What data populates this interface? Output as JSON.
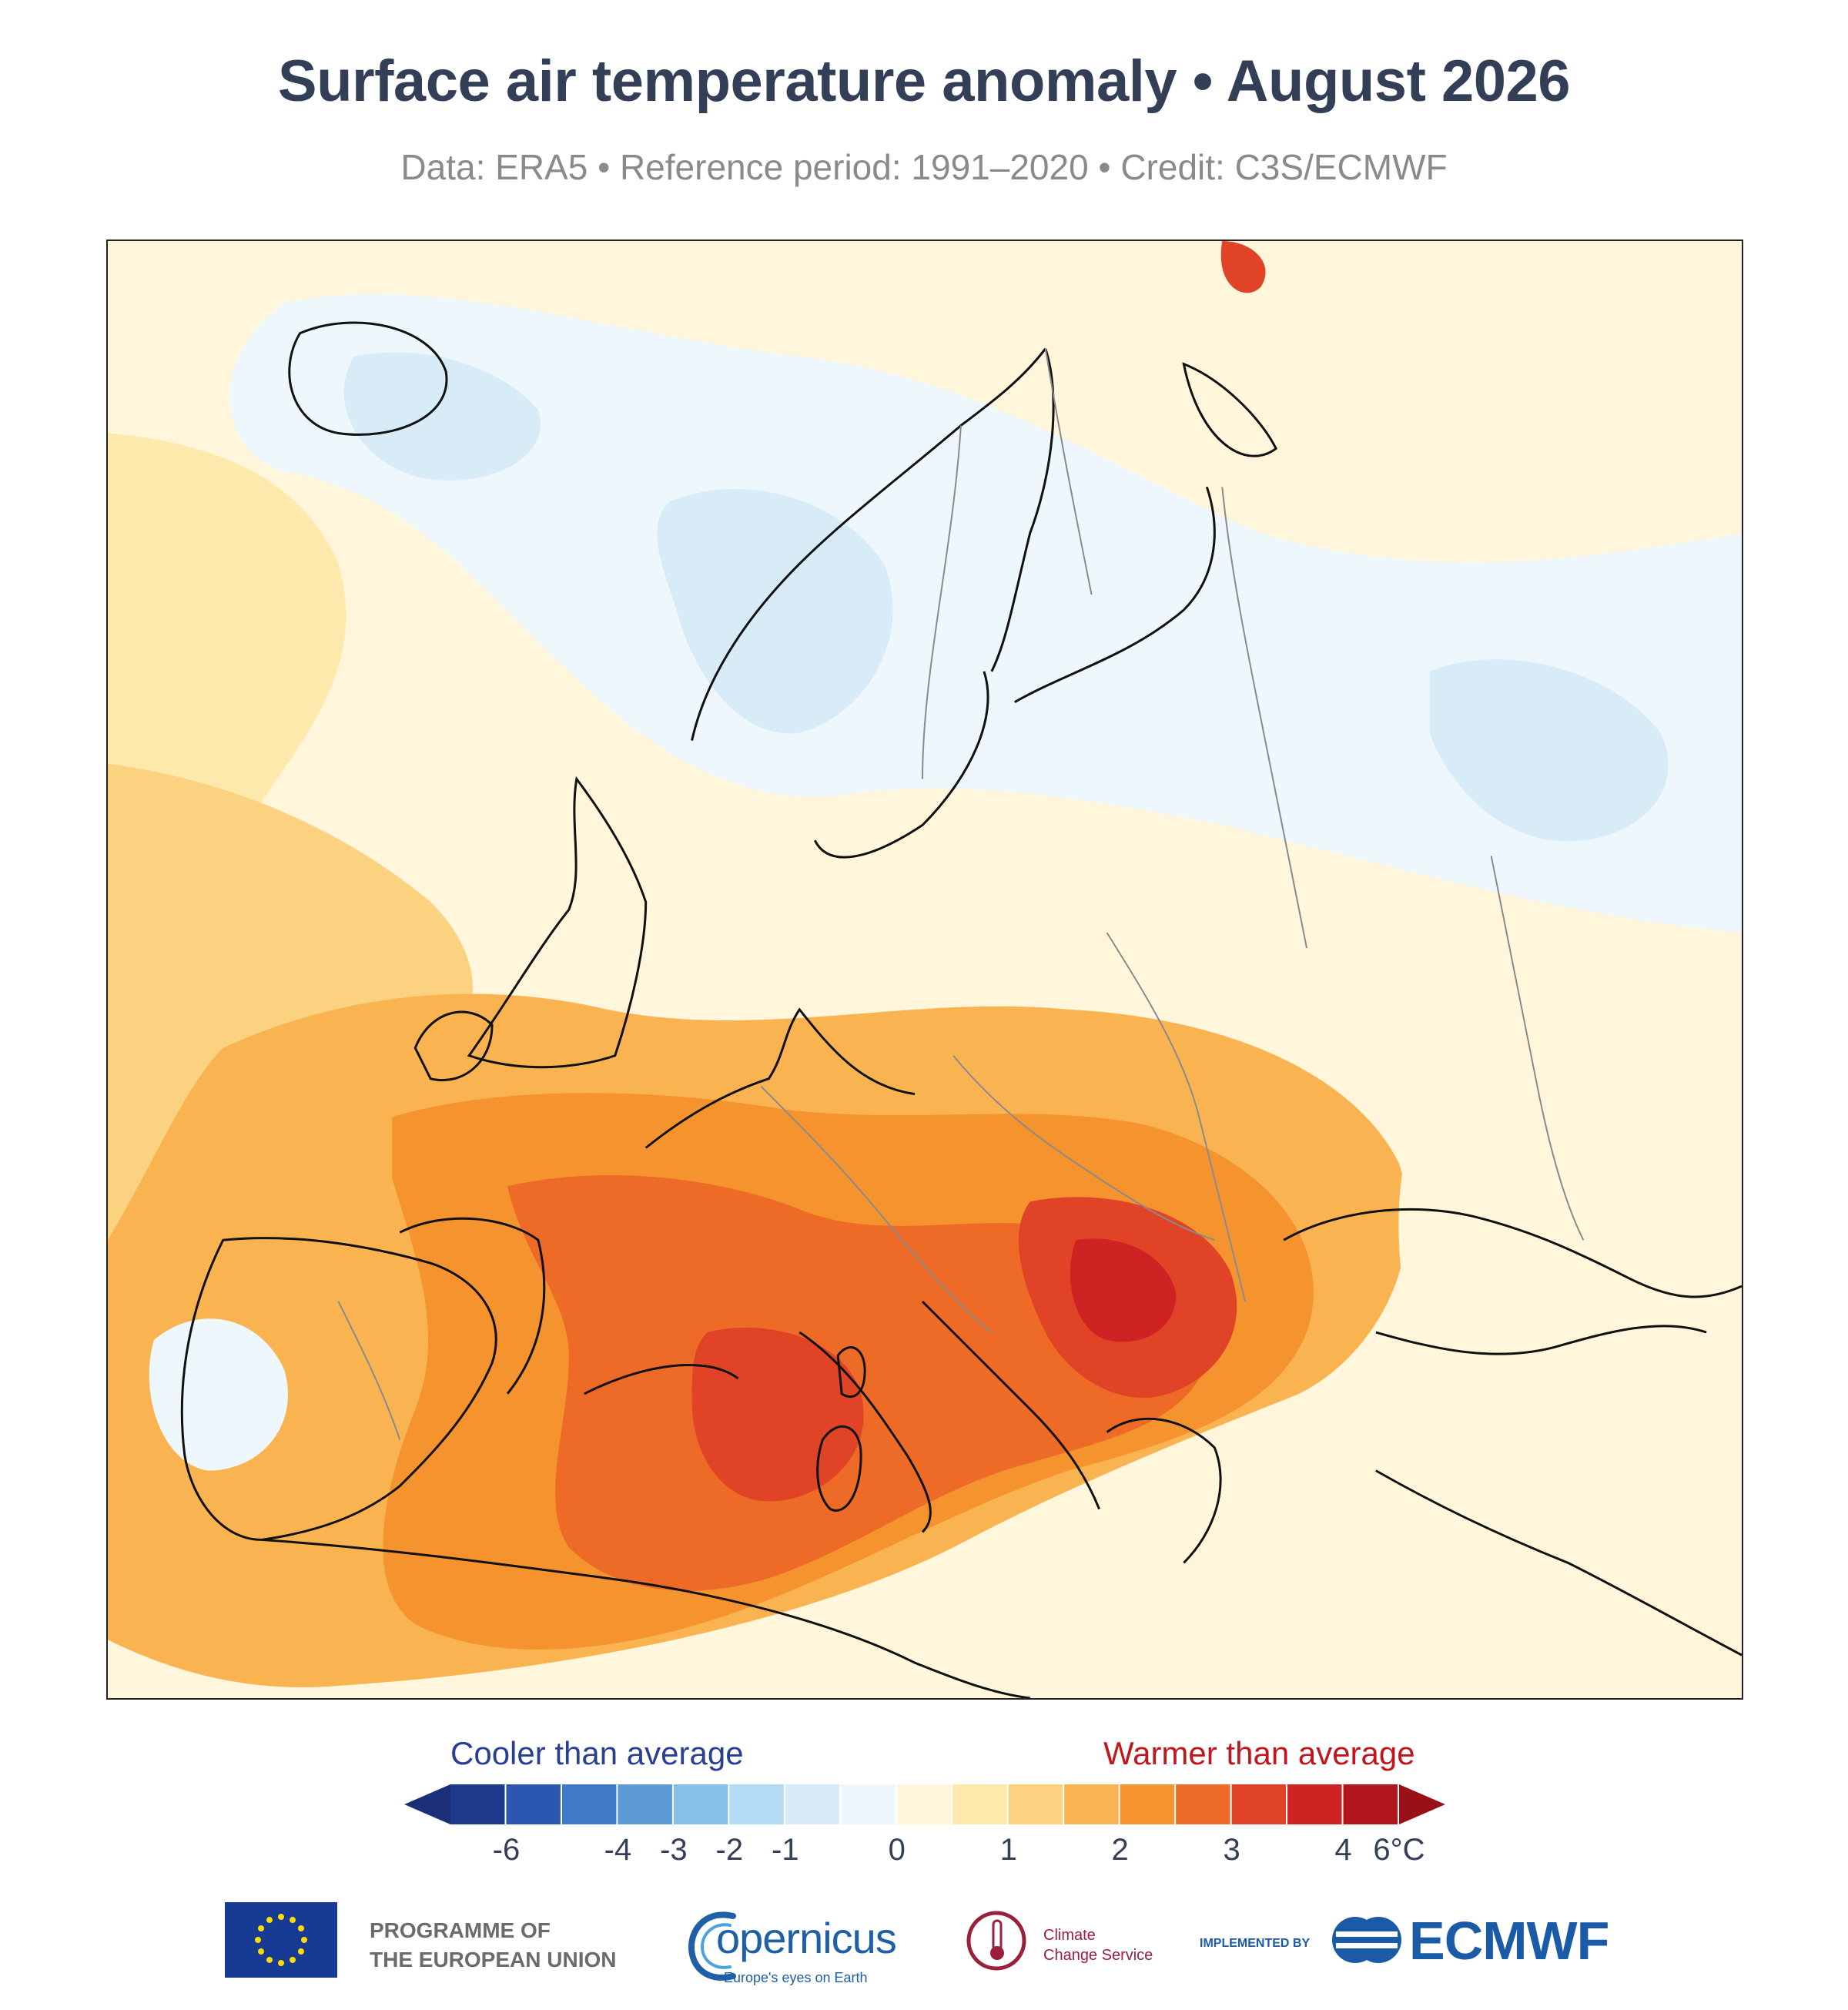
{
  "title": "Surface air temperature anomaly • August 2026",
  "subtitle": "Data: ERA5 • Reference period: 1991–2020 • Credit: C3S/ECMWF",
  "legend": {
    "cool_label": "Cooler than average",
    "warm_label": "Warmer than average",
    "ticks": [
      "-6",
      "-4",
      "-3",
      "-2",
      "-1",
      "0",
      "1",
      "2",
      "3",
      "4",
      "6°C"
    ],
    "colors": [
      "#1f3a8a",
      "#2b57b0",
      "#3f7ac6",
      "#5c9bd6",
      "#86bfe8",
      "#b3dbf3",
      "#d8ecf8",
      "#eef7fc",
      "#fff6dc",
      "#fde9ab",
      "#fbd27f",
      "#f9b451",
      "#f5932f",
      "#ee6b27",
      "#e04325",
      "#cf2323",
      "#b0161c"
    ],
    "low_arrow_color": "#1a2f78",
    "high_arrow_color": "#9a1017"
  },
  "logos": {
    "eu_line1": "PROGRAMME OF",
    "eu_line2": "THE EUROPEAN UNION",
    "copernicus": "opernicus",
    "copernicus_tag": "Europe's eyes on Earth",
    "c3s_line1": "Climate",
    "c3s_line2": "Change Service",
    "implemented_by": "IMPLEMENTED BY",
    "ecmwf": "ECMWF"
  }
}
